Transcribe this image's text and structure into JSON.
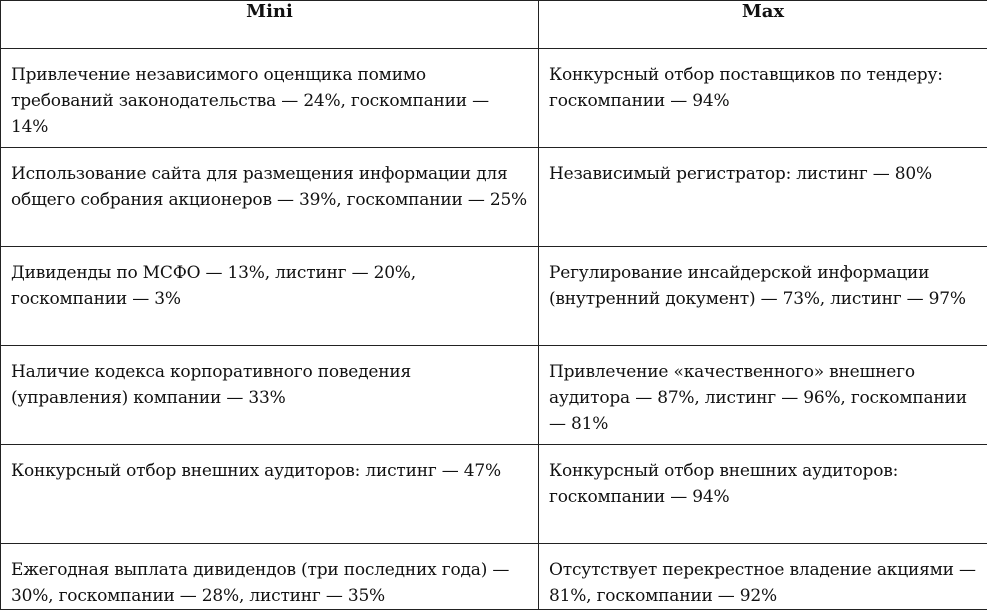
{
  "table": {
    "headers": [
      "Mini",
      "Max"
    ],
    "rows": [
      {
        "mini": "Привлечение независимого оценщика помимо требований законодательства — 24%, госкомпании — 14%",
        "max": "Конкурсный отбор поставщиков по тендеру: госкомпании — 94%"
      },
      {
        "mini": "Использование сайта для размещения информации для общего собрания акционеров — 39%, госкомпании — 25%",
        "max": "Независимый регистратор: листинг — 80%"
      },
      {
        "mini": "Дивиденды по МСФО — 13%, листинг — 20%, госкомпании — 3%",
        "max": "Регулирование инсайдерской информации (внутренний документ) — 73%, листинг — 97%"
      },
      {
        "mini": "Наличие кодекса корпоративного поведения (управления) компании — 33%",
        "max": "Привлечение «качественного» внешнего аудитора — 87%, листинг — 96%, госкомпании — 81%"
      },
      {
        "mini": "Конкурсный отбор внешних аудиторов: листинг — 47%",
        "max": "Конкурсный отбор внешних аудиторов: госкомпании — 94%"
      },
      {
        "mini": "Ежегодная выплата дивидендов (три последних года) — 30%, госкомпании — 28%, листинг — 35%",
        "max": "Отсутствует перекрестное владение акциями — 81%, госкомпании — 92%"
      }
    ]
  }
}
